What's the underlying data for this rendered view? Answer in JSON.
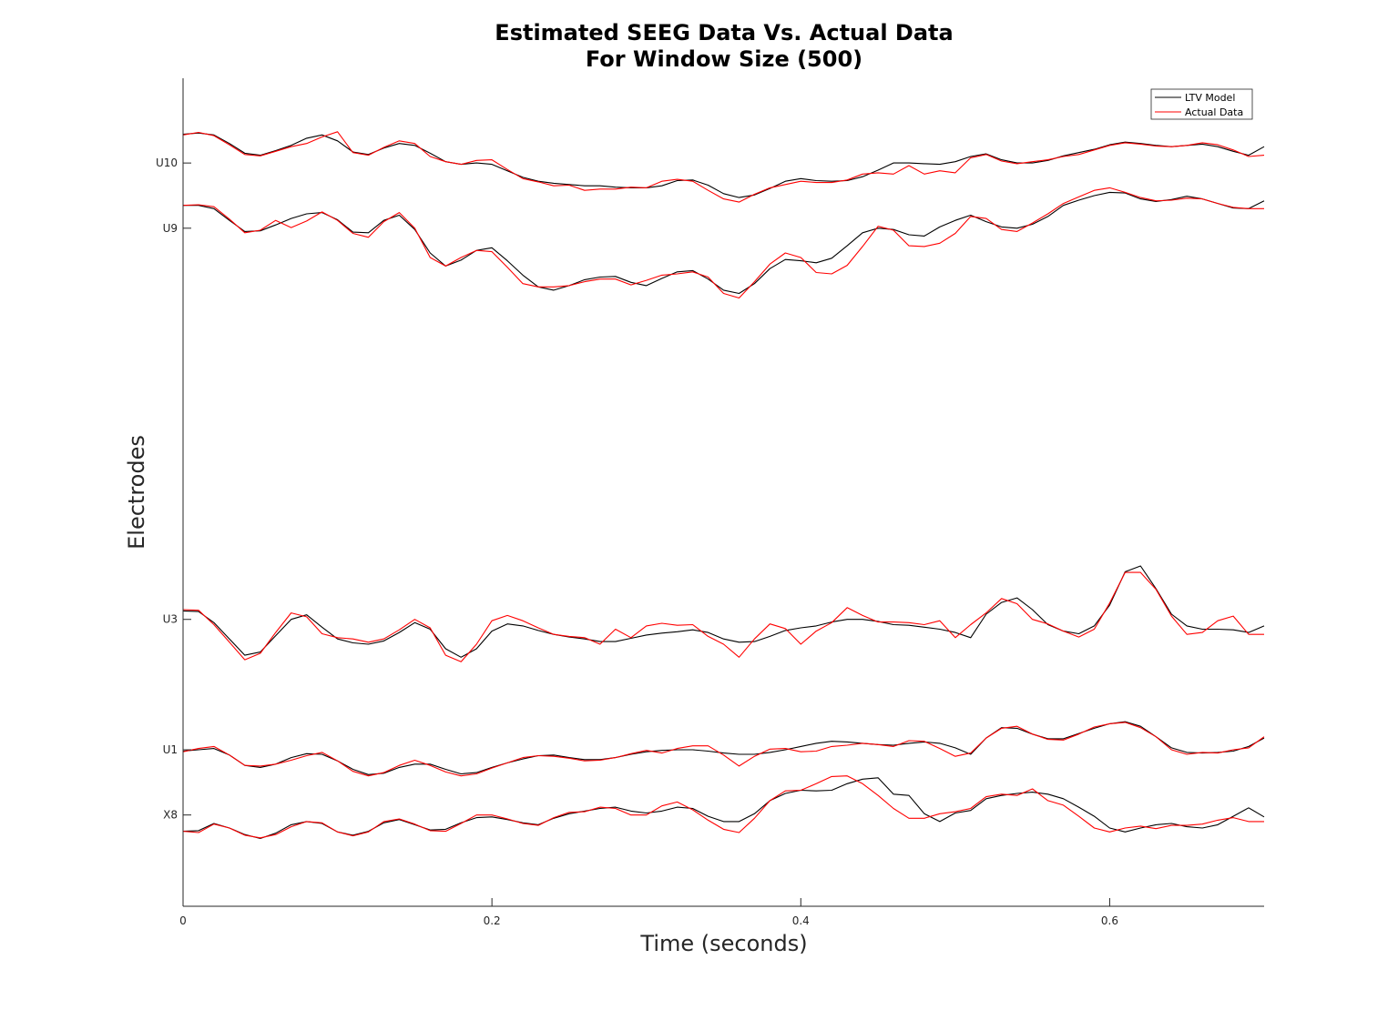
{
  "chart_data": {
    "type": "line",
    "title": [
      "Estimated SEEG Data Vs. Actual Data",
      "For Window Size (500)"
    ],
    "xlabel": "Time (seconds)",
    "ylabel": "Electrodes",
    "xlim": [
      0,
      0.7
    ],
    "xticks": [
      0,
      0.2,
      0.4,
      0.6
    ],
    "xtick_labels": [
      "0",
      "0.2",
      "0.4",
      "0.6"
    ],
    "yticks": [
      {
        "label": "U10",
        "baseline": 10
      },
      {
        "label": "U9",
        "baseline": 9
      },
      {
        "label": "U3",
        "baseline": 3
      },
      {
        "label": "U1",
        "baseline": 1
      },
      {
        "label": "X8",
        "baseline": 0
      }
    ],
    "ylim": [
      -1.4,
      11.3
    ],
    "grid": false,
    "legend": {
      "position": "top-right",
      "entries": [
        {
          "name": "LTV Model",
          "color": "#000000"
        },
        {
          "name": "Actual Data",
          "color": "#ff0000"
        }
      ]
    },
    "x": [
      0.0,
      0.01,
      0.02,
      0.03,
      0.04,
      0.05,
      0.06,
      0.07,
      0.08,
      0.09,
      0.1,
      0.11,
      0.12,
      0.13,
      0.14,
      0.15,
      0.16,
      0.17,
      0.18,
      0.19,
      0.2,
      0.21,
      0.22,
      0.23,
      0.24,
      0.25,
      0.26,
      0.27,
      0.28,
      0.29,
      0.3,
      0.31,
      0.32,
      0.33,
      0.34,
      0.35,
      0.36,
      0.37,
      0.38,
      0.39,
      0.4,
      0.41,
      0.42,
      0.43,
      0.44,
      0.45,
      0.46,
      0.47,
      0.48,
      0.49,
      0.5,
      0.51,
      0.52,
      0.53,
      0.54,
      0.55,
      0.56,
      0.57,
      0.58,
      0.59,
      0.6,
      0.61,
      0.62,
      0.63,
      0.64,
      0.65,
      0.66,
      0.67,
      0.68,
      0.69,
      0.7
    ],
    "electrodes": [
      {
        "label": "U10",
        "ltv": [
          10.44,
          10.46,
          10.43,
          10.3,
          10.15,
          10.12,
          10.19,
          10.27,
          10.38,
          10.43,
          10.34,
          10.17,
          10.13,
          10.23,
          10.3,
          10.27,
          10.15,
          10.02,
          9.98,
          10.0,
          9.98,
          9.88,
          9.78,
          9.72,
          9.69,
          9.67,
          9.65,
          9.65,
          9.63,
          9.62,
          9.62,
          9.65,
          9.73,
          9.74,
          9.66,
          9.53,
          9.47,
          9.51,
          9.61,
          9.72,
          9.76,
          9.73,
          9.72,
          9.73,
          9.79,
          9.89,
          10.0,
          10.0,
          9.99,
          9.98,
          10.02,
          10.1,
          10.14,
          10.05,
          10.0,
          10.0,
          10.04,
          10.11,
          10.16,
          10.21,
          10.28,
          10.32,
          10.3,
          10.27,
          10.25,
          10.27,
          10.29,
          10.25,
          10.18,
          10.12,
          10.25
        ],
        "actual": [
          10.43,
          10.47,
          10.42,
          10.28,
          10.13,
          10.11,
          10.18,
          10.25,
          10.3,
          10.4,
          10.48,
          10.16,
          10.12,
          10.24,
          10.34,
          10.3,
          10.1,
          10.02,
          9.98,
          10.04,
          10.05,
          9.9,
          9.76,
          9.71,
          9.65,
          9.66,
          9.58,
          9.6,
          9.6,
          9.63,
          9.62,
          9.72,
          9.75,
          9.72,
          9.58,
          9.45,
          9.4,
          9.52,
          9.62,
          9.67,
          9.72,
          9.7,
          9.7,
          9.74,
          9.83,
          9.85,
          9.83,
          9.96,
          9.83,
          9.88,
          9.85,
          10.08,
          10.13,
          10.03,
          9.99,
          10.02,
          10.05,
          10.1,
          10.13,
          10.2,
          10.27,
          10.31,
          10.29,
          10.26,
          10.25,
          10.27,
          10.31,
          10.28,
          10.2,
          10.1,
          10.12
        ]
      },
      {
        "label": "U9",
        "ltv": [
          9.35,
          9.35,
          9.3,
          9.12,
          8.95,
          8.96,
          9.05,
          9.15,
          9.22,
          9.24,
          9.13,
          8.94,
          8.93,
          9.12,
          9.2,
          8.98,
          8.62,
          8.42,
          8.51,
          8.66,
          8.7,
          8.5,
          8.28,
          8.1,
          8.05,
          8.12,
          8.21,
          8.25,
          8.26,
          8.17,
          8.12,
          8.23,
          8.33,
          8.35,
          8.22,
          8.05,
          8.0,
          8.15,
          8.38,
          8.52,
          8.5,
          8.47,
          8.54,
          8.73,
          8.93,
          9.0,
          8.98,
          8.9,
          8.88,
          9.02,
          9.12,
          9.2,
          9.1,
          9.02,
          9.0,
          9.06,
          9.18,
          9.35,
          9.43,
          9.5,
          9.55,
          9.54,
          9.45,
          9.41,
          9.44,
          9.49,
          9.45,
          9.38,
          9.31,
          9.3,
          9.42
        ],
        "actual": [
          9.35,
          9.36,
          9.33,
          9.14,
          8.93,
          8.97,
          9.12,
          9.01,
          9.11,
          9.25,
          9.12,
          8.92,
          8.86,
          9.1,
          9.24,
          9.0,
          8.55,
          8.42,
          8.55,
          8.66,
          8.64,
          8.4,
          8.15,
          8.1,
          8.1,
          8.12,
          8.18,
          8.22,
          8.22,
          8.13,
          8.2,
          8.28,
          8.3,
          8.33,
          8.25,
          8.0,
          7.93,
          8.18,
          8.45,
          8.62,
          8.55,
          8.32,
          8.3,
          8.43,
          8.72,
          9.03,
          8.97,
          8.73,
          8.72,
          8.77,
          8.92,
          9.18,
          9.15,
          8.98,
          8.95,
          9.08,
          9.22,
          9.38,
          9.48,
          9.58,
          9.62,
          9.55,
          9.47,
          9.42,
          9.43,
          9.46,
          9.45,
          9.38,
          9.32,
          9.3,
          9.3
        ]
      },
      {
        "label": "U3",
        "ltv": [
          3.13,
          3.12,
          2.95,
          2.7,
          2.45,
          2.5,
          2.75,
          3.0,
          3.07,
          2.88,
          2.7,
          2.64,
          2.62,
          2.67,
          2.8,
          2.95,
          2.85,
          2.55,
          2.42,
          2.55,
          2.82,
          2.93,
          2.9,
          2.83,
          2.77,
          2.73,
          2.7,
          2.66,
          2.66,
          2.71,
          2.76,
          2.79,
          2.81,
          2.84,
          2.8,
          2.7,
          2.65,
          2.66,
          2.74,
          2.83,
          2.87,
          2.9,
          2.96,
          3.0,
          3.0,
          2.97,
          2.92,
          2.91,
          2.88,
          2.85,
          2.8,
          2.72,
          3.08,
          3.26,
          3.33,
          3.15,
          2.92,
          2.82,
          2.78,
          2.9,
          3.22,
          3.73,
          3.82,
          3.47,
          3.08,
          2.9,
          2.85,
          2.85,
          2.84,
          2.8,
          2.9
        ],
        "actual": [
          3.15,
          3.14,
          2.92,
          2.65,
          2.38,
          2.48,
          2.8,
          3.1,
          3.04,
          2.78,
          2.72,
          2.7,
          2.65,
          2.7,
          2.84,
          3.0,
          2.87,
          2.45,
          2.35,
          2.62,
          2.98,
          3.06,
          2.98,
          2.87,
          2.77,
          2.74,
          2.72,
          2.62,
          2.85,
          2.72,
          2.9,
          2.94,
          2.91,
          2.92,
          2.74,
          2.62,
          2.42,
          2.7,
          2.93,
          2.86,
          2.62,
          2.82,
          2.95,
          3.18,
          3.06,
          2.96,
          2.96,
          2.95,
          2.92,
          2.98,
          2.72,
          2.92,
          3.1,
          3.32,
          3.24,
          3.0,
          2.93,
          2.82,
          2.73,
          2.85,
          3.25,
          3.72,
          3.72,
          3.46,
          3.05,
          2.77,
          2.8,
          2.98,
          3.05,
          2.77,
          2.77
        ]
      },
      {
        "label": "U1",
        "ltv": [
          0.98,
          1.0,
          1.02,
          0.92,
          0.76,
          0.73,
          0.78,
          0.88,
          0.94,
          0.93,
          0.83,
          0.7,
          0.62,
          0.64,
          0.73,
          0.78,
          0.78,
          0.7,
          0.63,
          0.65,
          0.73,
          0.8,
          0.86,
          0.91,
          0.92,
          0.88,
          0.85,
          0.85,
          0.88,
          0.93,
          0.97,
          0.99,
          1.0,
          1.0,
          0.98,
          0.95,
          0.93,
          0.93,
          0.96,
          1.0,
          1.05,
          1.1,
          1.13,
          1.12,
          1.1,
          1.08,
          1.07,
          1.1,
          1.12,
          1.1,
          1.03,
          0.93,
          1.18,
          1.34,
          1.33,
          1.24,
          1.17,
          1.17,
          1.25,
          1.33,
          1.4,
          1.43,
          1.36,
          1.2,
          1.03,
          0.96,
          0.95,
          0.96,
          0.98,
          1.05,
          1.18
        ],
        "actual": [
          0.97,
          1.02,
          1.05,
          0.92,
          0.76,
          0.75,
          0.78,
          0.84,
          0.91,
          0.96,
          0.83,
          0.67,
          0.6,
          0.65,
          0.76,
          0.84,
          0.76,
          0.66,
          0.6,
          0.63,
          0.72,
          0.8,
          0.88,
          0.91,
          0.9,
          0.87,
          0.83,
          0.84,
          0.88,
          0.94,
          0.99,
          0.95,
          1.02,
          1.06,
          1.06,
          0.92,
          0.75,
          0.9,
          1.01,
          1.02,
          0.97,
          0.98,
          1.05,
          1.07,
          1.1,
          1.08,
          1.05,
          1.14,
          1.13,
          1.02,
          0.9,
          0.95,
          1.18,
          1.33,
          1.36,
          1.24,
          1.16,
          1.15,
          1.24,
          1.35,
          1.4,
          1.42,
          1.34,
          1.2,
          1.0,
          0.93,
          0.96,
          0.95,
          1.0,
          1.03,
          1.2
        ]
      },
      {
        "label": "X8",
        "ltv": [
          -0.25,
          -0.24,
          -0.13,
          -0.2,
          -0.3,
          -0.36,
          -0.28,
          -0.15,
          -0.1,
          -0.13,
          -0.26,
          -0.31,
          -0.25,
          -0.12,
          -0.07,
          -0.15,
          -0.23,
          -0.22,
          -0.12,
          -0.04,
          -0.03,
          -0.07,
          -0.12,
          -0.15,
          -0.05,
          0.02,
          0.06,
          0.1,
          0.12,
          0.06,
          0.03,
          0.06,
          0.12,
          0.1,
          -0.02,
          -0.1,
          -0.1,
          0.02,
          0.22,
          0.33,
          0.38,
          0.37,
          0.38,
          0.48,
          0.55,
          0.57,
          0.32,
          0.3,
          0.02,
          -0.1,
          0.03,
          0.07,
          0.25,
          0.3,
          0.33,
          0.35,
          0.32,
          0.25,
          0.12,
          -0.02,
          -0.2,
          -0.26,
          -0.2,
          -0.15,
          -0.13,
          -0.18,
          -0.2,
          -0.15,
          -0.02,
          0.11,
          -0.03
        ],
        "actual": [
          -0.25,
          -0.27,
          -0.14,
          -0.2,
          -0.31,
          -0.35,
          -0.3,
          -0.18,
          -0.1,
          -0.12,
          -0.26,
          -0.32,
          -0.26,
          -0.1,
          -0.06,
          -0.14,
          -0.24,
          -0.25,
          -0.13,
          0.0,
          0.0,
          -0.06,
          -0.13,
          -0.16,
          -0.04,
          0.04,
          0.05,
          0.12,
          0.1,
          0.0,
          0.0,
          0.14,
          0.2,
          0.08,
          -0.08,
          -0.22,
          -0.27,
          -0.05,
          0.22,
          0.37,
          0.38,
          0.48,
          0.59,
          0.6,
          0.48,
          0.3,
          0.1,
          -0.05,
          -0.05,
          0.02,
          0.05,
          0.1,
          0.28,
          0.32,
          0.3,
          0.4,
          0.22,
          0.15,
          -0.02,
          -0.2,
          -0.26,
          -0.2,
          -0.17,
          -0.21,
          -0.16,
          -0.16,
          -0.14,
          -0.08,
          -0.04,
          -0.1,
          -0.1
        ]
      }
    ]
  }
}
